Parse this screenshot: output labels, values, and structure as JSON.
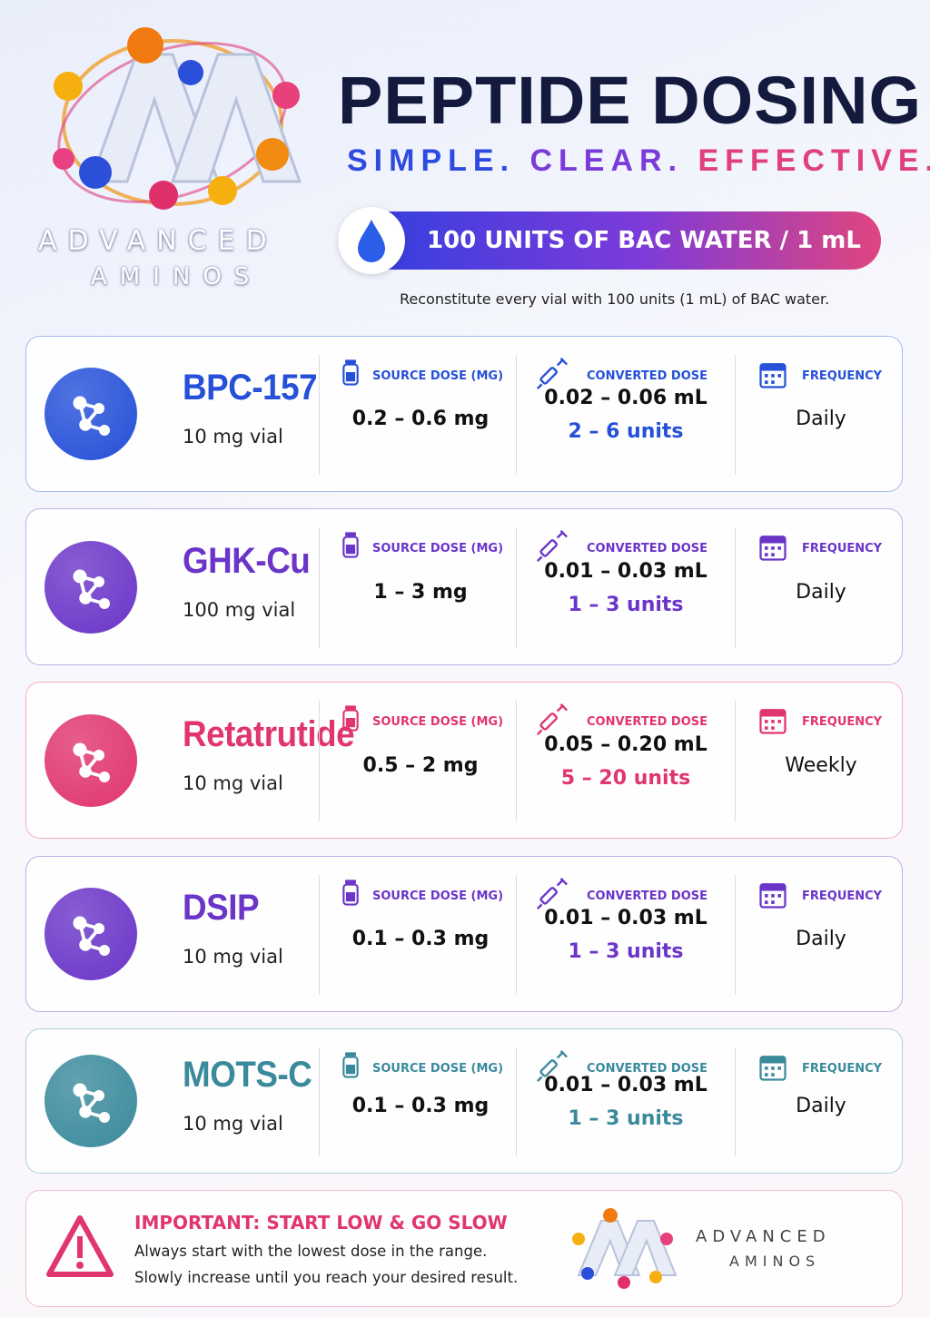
{
  "logo": {
    "line1": "ADVANCED",
    "line2": "AMINOS"
  },
  "header": {
    "title": "PEPTIDE DOSING",
    "tagline": [
      "SIMPLE.",
      "CLEAR.",
      "EFFECTIVE."
    ],
    "banner": "100 UNITS OF BAC WATER / 1 mL",
    "note": "Reconstitute every vial with 100 units (1 mL) of BAC water."
  },
  "columns": [
    "SOURCE DOSE (MG)",
    "CONVERTED DOSE",
    "FREQUENCY"
  ],
  "peptides": [
    {
      "name": "BPC-157",
      "vial": "10 mg vial",
      "source_dose": "0.2 – 0.6 mg",
      "converted_ml": "0.02 – 0.06 mL",
      "converted_units": "2 – 6 units",
      "frequency": "Daily",
      "color": "#2550d8"
    },
    {
      "name": "GHK-Cu",
      "vial": "100 mg vial",
      "source_dose": "1 – 3 mg",
      "converted_ml": "0.01 – 0.03 mL",
      "converted_units": "1 – 3 units",
      "frequency": "Daily",
      "color": "#6a35c8"
    },
    {
      "name": "Retatrutide",
      "vial": "10 mg vial",
      "source_dose": "0.5 – 2 mg",
      "converted_ml": "0.05 – 0.20 mL",
      "converted_units": "5 – 20 units",
      "frequency": "Weekly",
      "color": "#e0356f"
    },
    {
      "name": "DSIP",
      "vial": "10 mg vial",
      "source_dose": "0.1 – 0.3 mg",
      "converted_ml": "0.01 – 0.03 mL",
      "converted_units": "1 – 3 units",
      "frequency": "Daily",
      "color": "#6a35c8"
    },
    {
      "name": "MOTS-C",
      "vial": "10 mg vial",
      "source_dose": "0.1 – 0.3 mg",
      "converted_ml": "0.01 – 0.03 mL",
      "converted_units": "1 – 3 units",
      "frequency": "Daily",
      "color": "#3a8a9c"
    }
  ],
  "footer": {
    "title": "IMPORTANT: START LOW & GO SLOW",
    "lines": [
      "Always start with the lowest dose in the range.",
      "Slowly increase until you reach your desired result."
    ]
  }
}
